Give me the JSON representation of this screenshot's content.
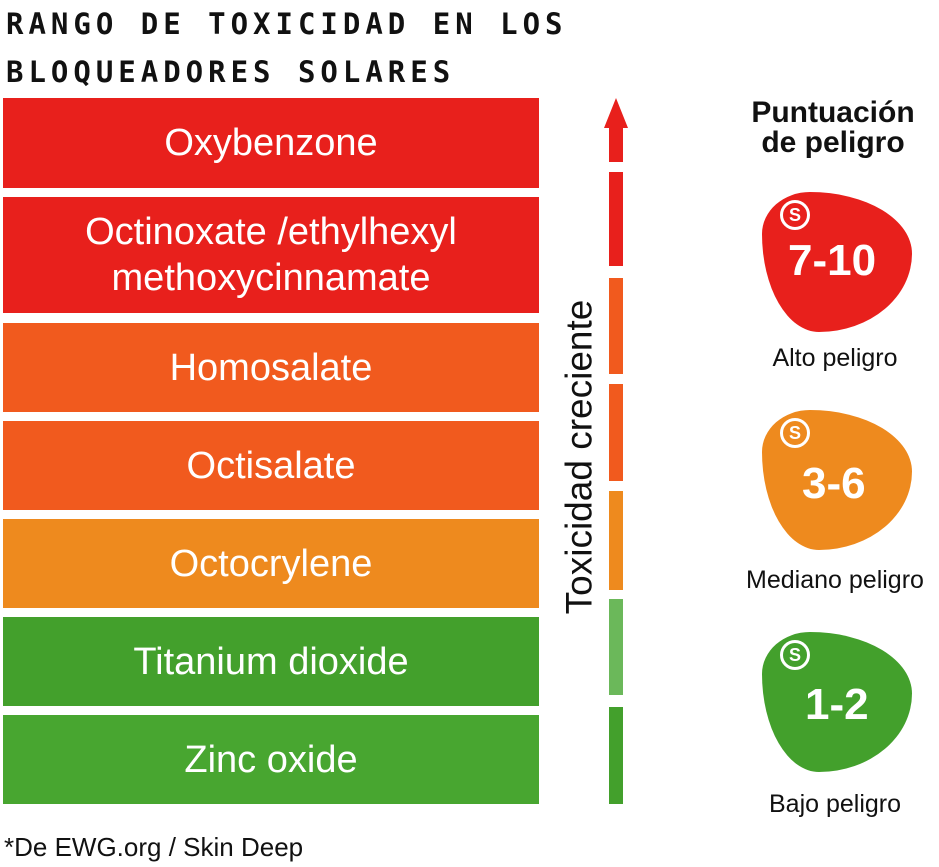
{
  "title_lines": [
    "RANGO DE TOXICIDAD EN LOS",
    "BLOQUEADORES SOLARES"
  ],
  "ingredients": [
    {
      "lines": [
        "Oxybenzone"
      ],
      "color": "#e8201c"
    },
    {
      "lines": [
        "Octinoxate /ethylhexyl",
        "methoxycinnamate"
      ],
      "color": "#e8201c"
    },
    {
      "lines": [
        "Homosalate"
      ],
      "color": "#f15a1e"
    },
    {
      "lines": [
        "Octisalate"
      ],
      "color": "#f15a1e"
    },
    {
      "lines": [
        "Octocrylene"
      ],
      "color": "#ee8a1e"
    },
    {
      "lines": [
        "Titanium dioxide"
      ],
      "color": "#43a02c"
    },
    {
      "lines": [
        "Zinc oxide"
      ],
      "color": "#48a630"
    }
  ],
  "axis_label": "Toxicidad creciente",
  "score_title_lines": [
    "Puntuación",
    "de peligro"
  ],
  "scores": [
    {
      "value": "7-10",
      "label": "Alto peligro",
      "color": "#e8201c",
      "icon": "sunscreen-face-icon"
    },
    {
      "value": "3-6",
      "label": "Mediano peligro",
      "color": "#ee8a1e",
      "icon": "sunscreen-face-icon"
    },
    {
      "value": "1-2",
      "label": "Bajo peligro",
      "color": "#43a02c",
      "icon": "sunscreen-face-icon"
    }
  ],
  "source": "*De EWG.org / Skin Deep"
}
